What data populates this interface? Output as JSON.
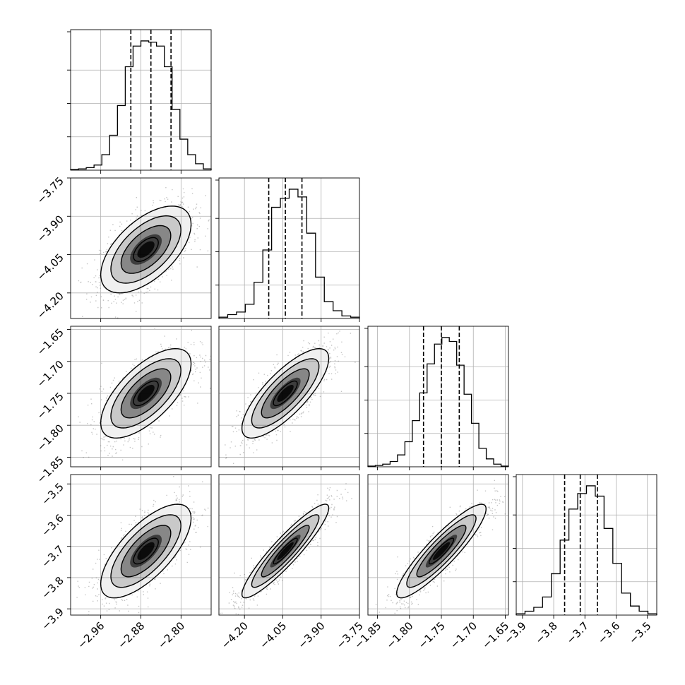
{
  "chart_data": {
    "type": "corner",
    "grid": true,
    "axis_labels": [
      "",
      "",
      "",
      ""
    ],
    "params": [
      {
        "range": [
          -3.02,
          -2.74
        ],
        "ticks": [
          -2.96,
          -2.88,
          -2.8
        ],
        "tick_labels": [
          "−2.96",
          "−2.88",
          "−2.80"
        ],
        "quantiles": [
          -2.9,
          -2.86,
          -2.82
        ],
        "hist": [
          0.5,
          1,
          2,
          4,
          12,
          27,
          50,
          80,
          96,
          100,
          99,
          96,
          80,
          47,
          24,
          12,
          5,
          1
        ]
      },
      {
        "range": [
          -4.3,
          -3.75
        ],
        "ticks": [
          -4.2,
          -4.05,
          -3.9,
          -3.75
        ],
        "tick_labels": [
          "−4.20",
          "−4.05",
          "−3.90",
          "−3.75"
        ],
        "quantiles": [
          -4.105,
          -4.04,
          -3.975
        ],
        "hist": [
          1,
          3,
          5,
          11,
          28,
          53,
          86,
          93,
          100,
          94,
          66,
          32,
          13,
          6,
          2,
          1
        ]
      },
      {
        "range": [
          -1.865,
          -1.645
        ],
        "ticks": [
          -1.85,
          -1.8,
          -1.75,
          -1.7,
          -1.65
        ],
        "tick_labels": [
          "−1.85",
          "−1.80",
          "−1.75",
          "−1.70",
          "−1.65"
        ],
        "quantiles": [
          -1.778,
          -1.75,
          -1.722
        ],
        "hist": [
          0.5,
          1,
          2,
          4,
          9,
          19,
          35,
          56,
          78,
          93,
          98,
          95,
          77,
          55,
          33,
          14,
          6,
          2,
          0.5
        ]
      },
      {
        "range": [
          -3.92,
          -3.47
        ],
        "ticks": [
          -3.9,
          -3.8,
          -3.7,
          -3.6,
          -3.5
        ],
        "tick_labels": [
          "−3.9",
          "−3.8",
          "−3.7",
          "−3.6",
          "−3.5"
        ],
        "quantiles": [
          -3.765,
          -3.715,
          -3.66
        ],
        "hist": [
          1,
          3,
          6,
          14,
          32,
          58,
          82,
          94,
          100,
          92,
          67,
          40,
          17,
          7,
          3,
          1
        ]
      }
    ],
    "y_axes": {
      "1": {
        "ticks": [
          -4.2,
          -4.05,
          -3.9,
          -3.75
        ],
        "tick_labels": [
          "−4.20",
          "−4.05",
          "−3.90",
          "−3.75"
        ]
      },
      "2": {
        "ticks": [
          -1.85,
          -1.8,
          -1.75,
          -1.7,
          -1.65
        ],
        "tick_labels": [
          "−1.85",
          "−1.80",
          "−1.75",
          "−1.70",
          "−1.65"
        ]
      },
      "3": {
        "ticks": [
          -3.9,
          -3.8,
          -3.7,
          -3.6,
          -3.5
        ],
        "tick_labels": [
          "−3.9",
          "−3.8",
          "−3.7",
          "−3.6",
          "−3.5"
        ]
      }
    },
    "pairs": [
      {
        "row": 1,
        "col": 0,
        "center": [
          -2.87,
          -4.03
        ],
        "sigma": [
          0.045,
          0.085
        ],
        "corr": 0.58
      },
      {
        "row": 2,
        "col": 0,
        "center": [
          -2.87,
          -1.75
        ],
        "sigma": [
          0.045,
          0.035
        ],
        "corr": 0.66
      },
      {
        "row": 2,
        "col": 1,
        "center": [
          -4.04,
          -1.75
        ],
        "sigma": [
          0.085,
          0.035
        ],
        "corr": 0.78
      },
      {
        "row": 3,
        "col": 0,
        "center": [
          -2.87,
          -3.715
        ],
        "sigma": [
          0.045,
          0.075
        ],
        "corr": 0.7
      },
      {
        "row": 3,
        "col": 1,
        "center": [
          -4.04,
          -3.715
        ],
        "sigma": [
          0.085,
          0.075
        ],
        "corr": 0.92
      },
      {
        "row": 3,
        "col": 2,
        "center": [
          -1.75,
          -3.715
        ],
        "sigma": [
          0.035,
          0.075
        ],
        "corr": 0.9
      }
    ],
    "colors": {
      "line": "#000000",
      "grid": "#b0b0b0",
      "points": "#555555",
      "fill": "#000000"
    }
  }
}
